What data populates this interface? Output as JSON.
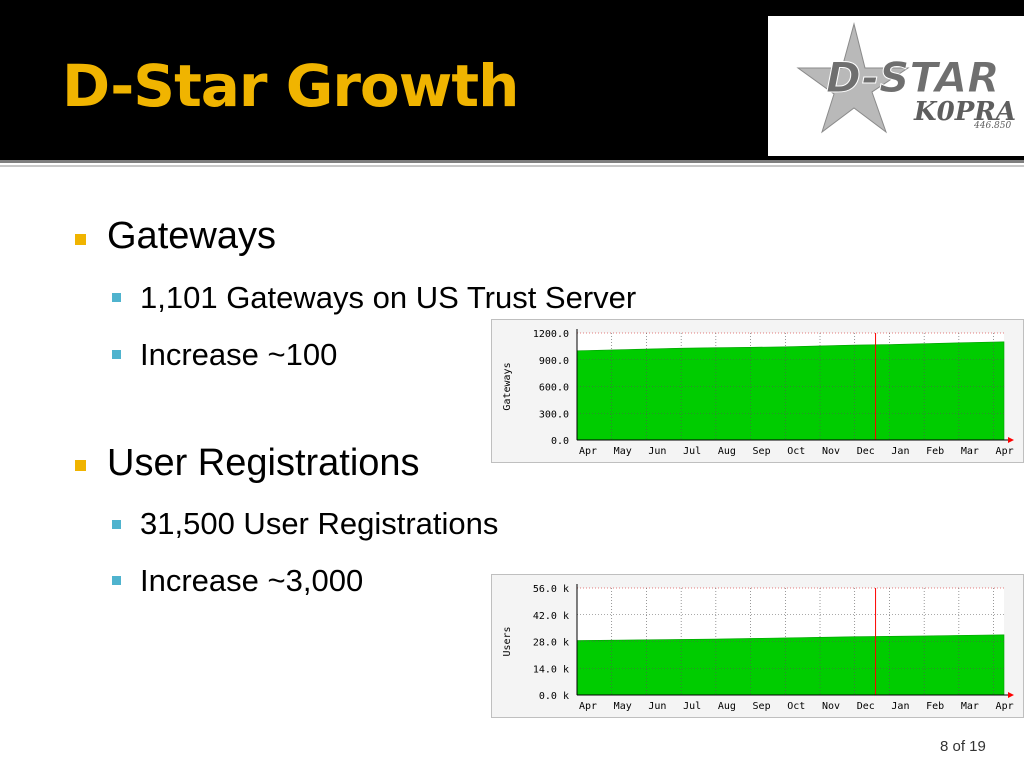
{
  "slide": {
    "title": "D-Star Growth",
    "page_number": "8 of 19",
    "colors": {
      "title": "#f0b400",
      "header_bg": "#000000",
      "bullet_main": "#f0b400",
      "bullet_sub": "#4fb3ce",
      "graph_fill": "#00cc00",
      "marker": "#ff0000"
    }
  },
  "logo": {
    "text_main": "D-STAR",
    "callsign": "K0PRA",
    "frequency": "446.850"
  },
  "bullets": [
    {
      "label": "Gateways",
      "sub": [
        "1,101 Gateways on US Trust Server",
        "Increase ~100"
      ]
    },
    {
      "label": "User Registrations",
      "sub": [
        "31,500 User Registrations",
        "Increase ~3,000"
      ]
    }
  ],
  "chart_data": [
    {
      "type": "area",
      "ylabel": "Gateways",
      "ylim": [
        0,
        1200
      ],
      "y_ticks": [
        "1200.0",
        "900.0",
        "600.0",
        "300.0",
        "0.0"
      ],
      "y_tick_values": [
        1200,
        900,
        600,
        300,
        0
      ],
      "x_ticks": [
        "Apr",
        "May",
        "Jun",
        "Jul",
        "Aug",
        "Sep",
        "Oct",
        "Nov",
        "Dec",
        "Jan",
        "Feb",
        "Mar",
        "Apr"
      ],
      "x": [
        0,
        1,
        2,
        3,
        4,
        5,
        6,
        7,
        8,
        9,
        10,
        11,
        12.3
      ],
      "values": [
        1000,
        1010,
        1020,
        1030,
        1035,
        1040,
        1045,
        1055,
        1065,
        1070,
        1080,
        1090,
        1101
      ],
      "year_marker_x": 8.6,
      "grid": true
    },
    {
      "type": "area",
      "ylabel": "Users",
      "ylim": [
        0,
        56000
      ],
      "y_ticks": [
        "56.0 k",
        "42.0 k",
        "28.0 k",
        "14.0 k",
        "0.0 k"
      ],
      "y_tick_values": [
        56000,
        42000,
        28000,
        14000,
        0
      ],
      "x_ticks": [
        "Apr",
        "May",
        "Jun",
        "Jul",
        "Aug",
        "Sep",
        "Oct",
        "Nov",
        "Dec",
        "Jan",
        "Feb",
        "Mar",
        "Apr"
      ],
      "x": [
        0,
        1,
        2,
        3,
        4,
        5,
        6,
        7,
        8,
        9,
        10,
        11,
        12.3
      ],
      "values": [
        28500,
        28700,
        28900,
        29100,
        29300,
        29600,
        29900,
        30200,
        30500,
        30700,
        30900,
        31200,
        31500
      ],
      "year_marker_x": 8.6,
      "grid": true
    }
  ]
}
